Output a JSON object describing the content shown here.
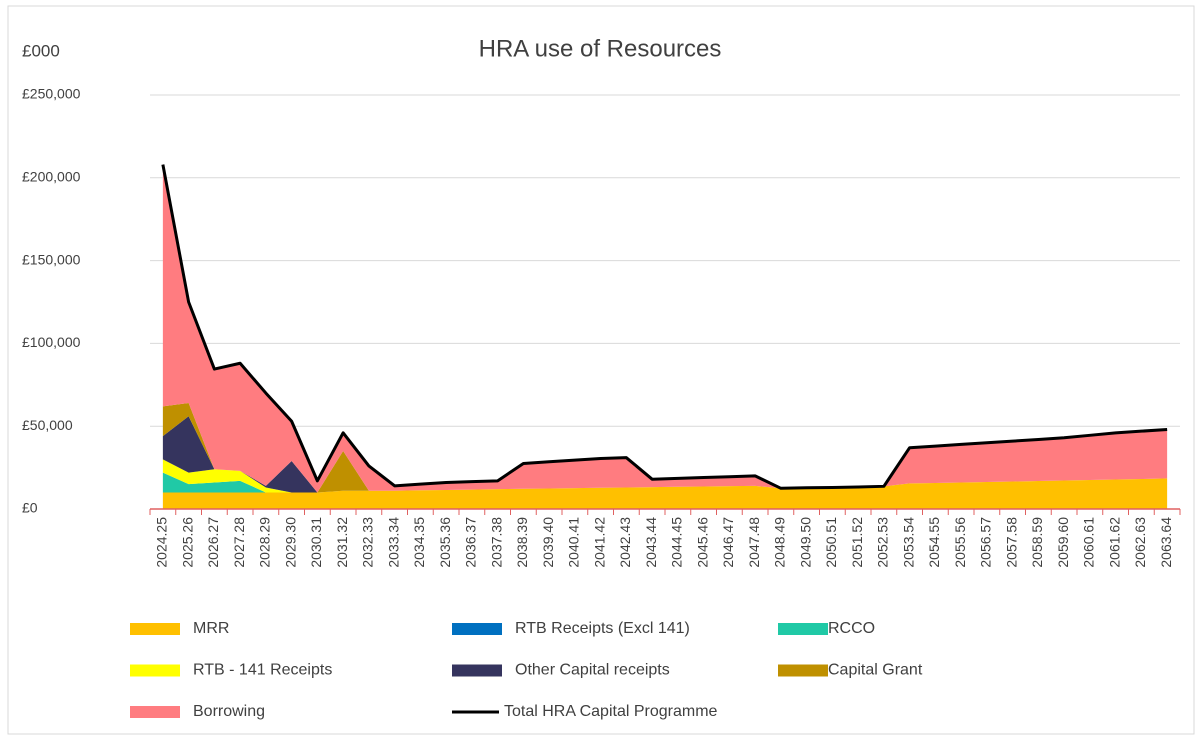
{
  "chart_data": {
    "type": "stacked_area",
    "title": "HRA use of Resources",
    "y_label": "£000",
    "categories": [
      "2024.25",
      "2025.26",
      "2026.27",
      "2027.28",
      "2028.29",
      "2029.30",
      "2030.31",
      "2031.32",
      "2032.33",
      "2033.34",
      "2034.35",
      "2035.36",
      "2036.37",
      "2037.38",
      "2038.39",
      "2039.40",
      "2040.41",
      "2041.42",
      "2042.43",
      "2043.44",
      "2044.45",
      "2045.46",
      "2046.47",
      "2047.48",
      "2048.49",
      "2049.50",
      "2050.51",
      "2051.52",
      "2052.53",
      "2053.54",
      "2054.55",
      "2055.56",
      "2056.57",
      "2057.58",
      "2058.59",
      "2059.60",
      "2060.61",
      "2061.62",
      "2062.63",
      "2063.64"
    ],
    "series": [
      {
        "name": "MRR",
        "color": "#ffc000",
        "values": [
          10000,
          10000,
          10000,
          10000,
          10000,
          10000,
          10000,
          11000,
          11000,
          11000,
          11300,
          11500,
          11700,
          12000,
          12200,
          12400,
          12600,
          12800,
          13000,
          13200,
          13400,
          13600,
          13800,
          14000,
          12500,
          12800,
          13000,
          13300,
          13700,
          15500,
          15700,
          16000,
          16300,
          16600,
          16900,
          17200,
          17500,
          17800,
          18100,
          18500
        ]
      },
      {
        "name": "RTB Receipts (Excl 141)",
        "color": "#0070c0",
        "values": [
          0,
          0,
          0,
          0,
          0,
          0,
          0,
          0,
          0,
          0,
          0,
          0,
          0,
          0,
          0,
          0,
          0,
          0,
          0,
          0,
          0,
          0,
          0,
          0,
          0,
          0,
          0,
          0,
          0,
          0,
          0,
          0,
          0,
          0,
          0,
          0,
          0,
          0,
          0,
          0
        ]
      },
      {
        "name": "RCCO",
        "color": "#20c9a6",
        "values": [
          12000,
          5000,
          6000,
          7000,
          0,
          0,
          0,
          0,
          0,
          0,
          0,
          0,
          0,
          0,
          0,
          0,
          0,
          0,
          0,
          0,
          0,
          0,
          0,
          0,
          0,
          0,
          0,
          0,
          0,
          0,
          0,
          0,
          0,
          0,
          0,
          0,
          0,
          0,
          0,
          0
        ]
      },
      {
        "name": "RTB - 141 Receipts",
        "color": "#ffff00",
        "values": [
          8000,
          7000,
          8000,
          6000,
          3000,
          0,
          0,
          0,
          0,
          0,
          0,
          0,
          0,
          0,
          0,
          0,
          0,
          0,
          0,
          0,
          0,
          0,
          0,
          0,
          0,
          0,
          0,
          0,
          0,
          0,
          0,
          0,
          0,
          0,
          0,
          0,
          0,
          0,
          0,
          0
        ]
      },
      {
        "name": "Other Capital receipts",
        "color": "#35345e",
        "values": [
          14000,
          34000,
          0,
          0,
          1000,
          19000,
          0,
          0,
          0,
          0,
          0,
          0,
          0,
          0,
          0,
          0,
          0,
          0,
          0,
          0,
          0,
          0,
          0,
          0,
          0,
          0,
          0,
          0,
          0,
          0,
          0,
          0,
          0,
          0,
          0,
          0,
          0,
          0,
          0,
          0
        ]
      },
      {
        "name": "Capital Grant",
        "color": "#bf9000",
        "values": [
          18000,
          8000,
          0,
          0,
          0,
          0,
          0,
          24000,
          0,
          0,
          0,
          0,
          0,
          0,
          0,
          0,
          0,
          0,
          0,
          0,
          0,
          0,
          0,
          0,
          0,
          0,
          0,
          0,
          0,
          0,
          0,
          0,
          0,
          0,
          0,
          0,
          0,
          0,
          0,
          0
        ]
      },
      {
        "name": "Borrowing",
        "color": "#ff7c80",
        "values": [
          146000,
          61000,
          60500,
          65000,
          56000,
          24000,
          7000,
          11000,
          15000,
          3000,
          3700,
          4500,
          4800,
          5000,
          15300,
          16100,
          16900,
          17700,
          18000,
          4800,
          5100,
          5400,
          5700,
          6000,
          0,
          0,
          0,
          0,
          0,
          21500,
          22300,
          23000,
          23700,
          24400,
          25100,
          25800,
          27000,
          28200,
          28900,
          29500
        ]
      }
    ],
    "line_series": {
      "name": "Total HRA Capital Programme",
      "color": "#000000",
      "values": [
        208000,
        125000,
        84500,
        88000,
        70000,
        53000,
        17000,
        46000,
        26000,
        14000,
        15000,
        16000,
        16500,
        17000,
        27500,
        28500,
        29500,
        30500,
        31000,
        18000,
        18500,
        19000,
        19500,
        20000,
        12500,
        12800,
        13000,
        13300,
        13700,
        37000,
        38000,
        39000,
        40000,
        41000,
        42000,
        43000,
        44500,
        46000,
        47000,
        48000
      ]
    },
    "ylim": [
      0,
      250000
    ],
    "yticks": [
      {
        "value": 0,
        "label": "£0"
      },
      {
        "value": 50000,
        "label": "£50,000"
      },
      {
        "value": 100000,
        "label": "£100,000"
      },
      {
        "value": 150000,
        "label": "£150,000"
      },
      {
        "value": 200000,
        "label": "£200,000"
      },
      {
        "value": 250000,
        "label": "£250,000"
      }
    ],
    "grid": true,
    "axis_color": "#e06060",
    "legend": "bottom"
  }
}
